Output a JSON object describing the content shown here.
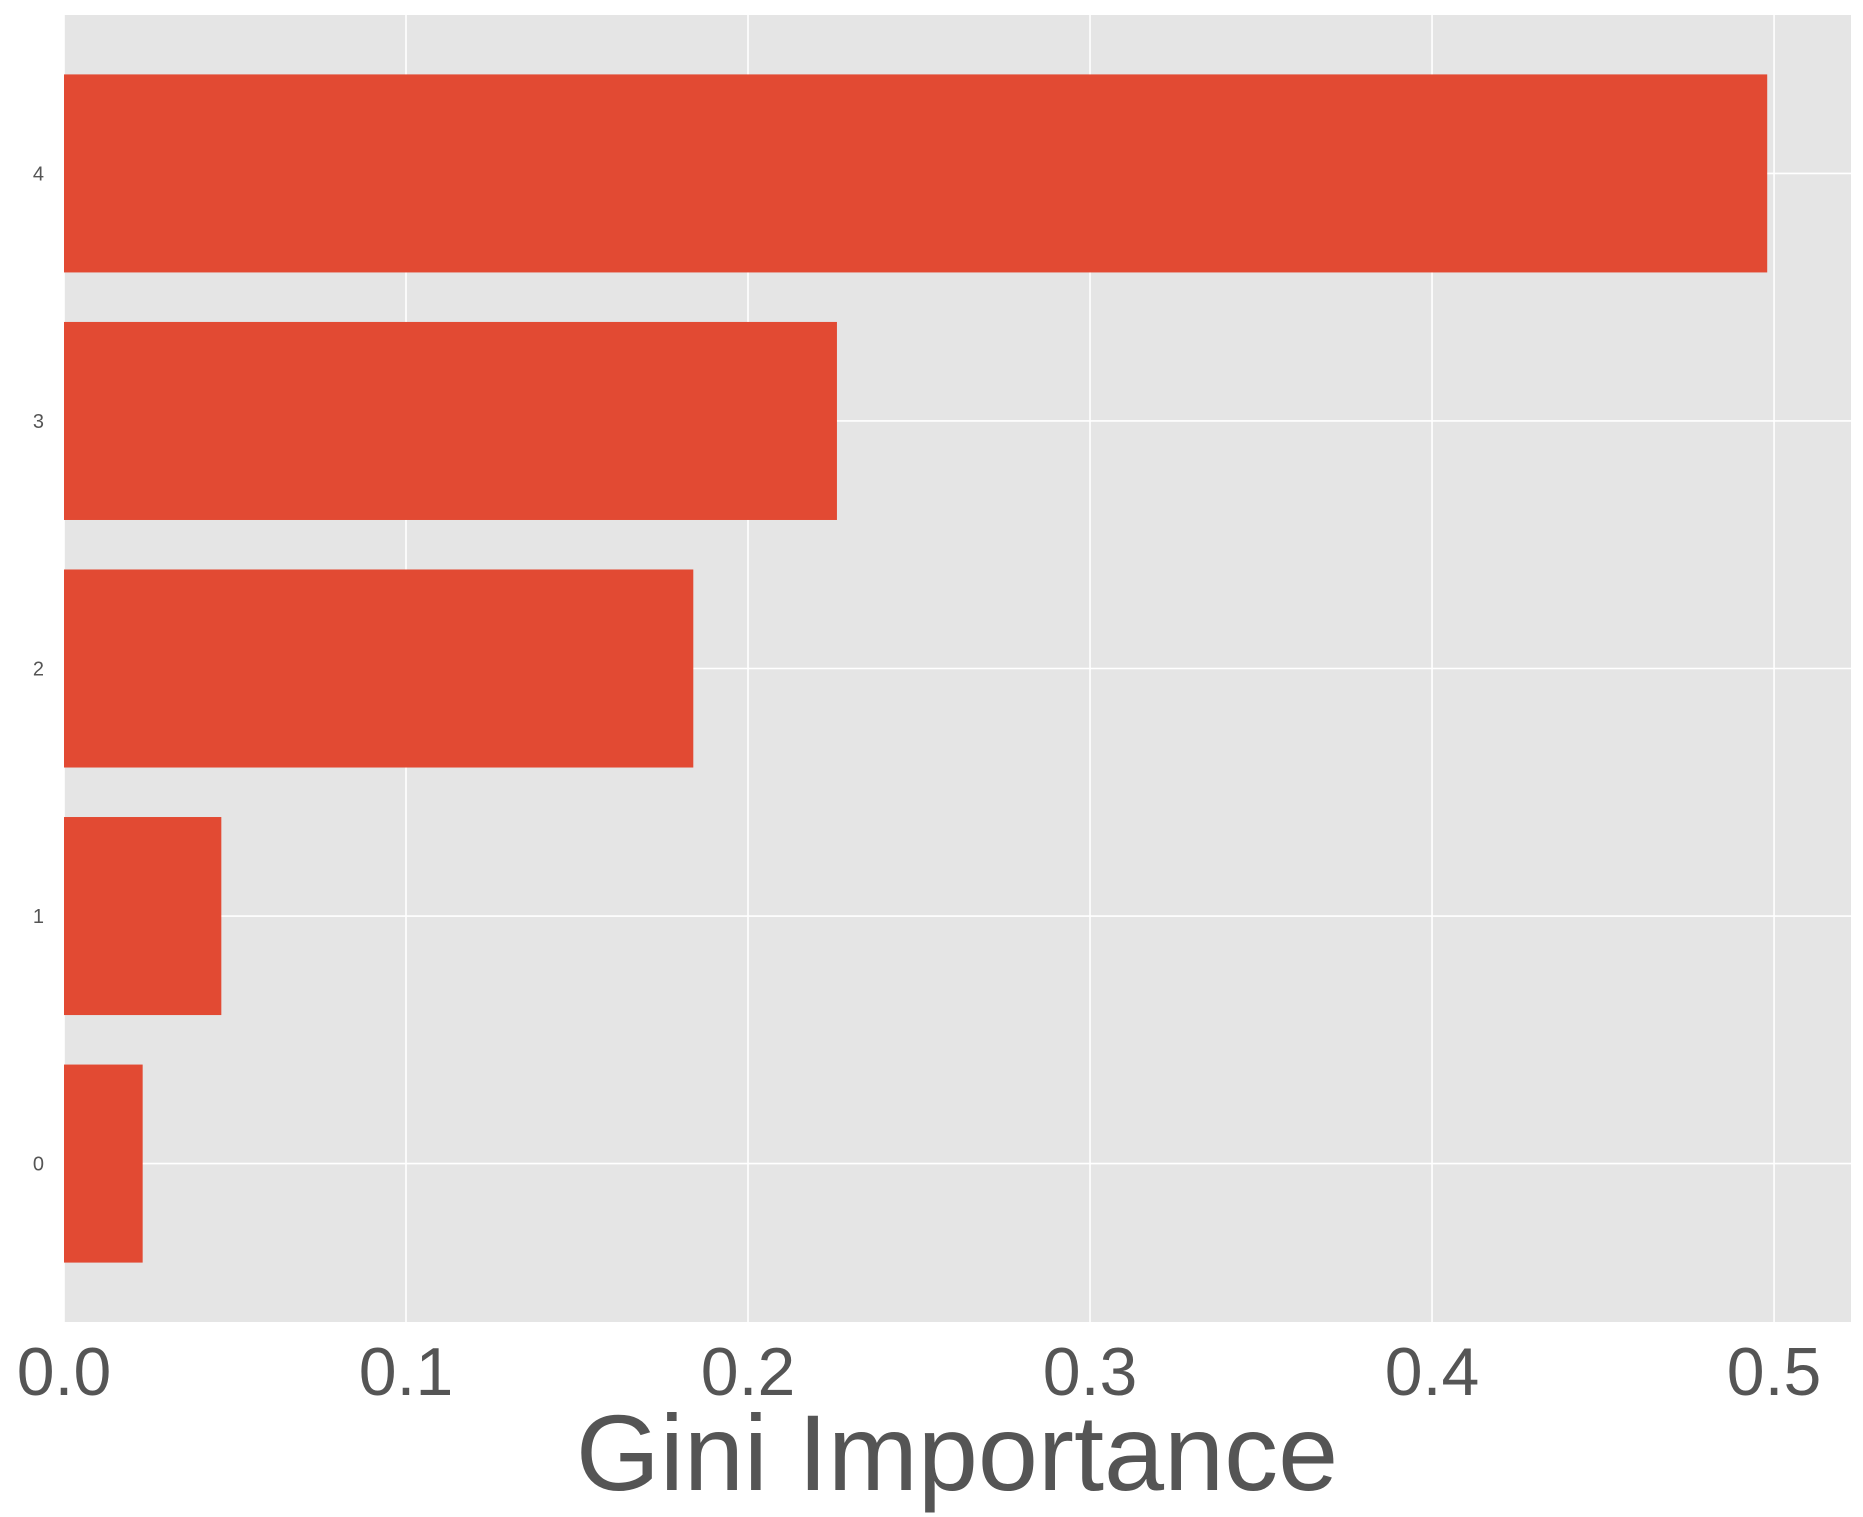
{
  "chart_data": {
    "type": "bar",
    "orientation": "horizontal",
    "categories": [
      "0",
      "1",
      "2",
      "3",
      "4"
    ],
    "values": [
      0.023,
      0.046,
      0.184,
      0.226,
      0.498
    ],
    "title": "",
    "xlabel": "Gini Importance",
    "ylabel": "",
    "xlim": [
      0.0,
      0.5225
    ],
    "x_ticks": [
      "0.0",
      "0.1",
      "0.2",
      "0.3",
      "0.4",
      "0.5"
    ],
    "grid": true,
    "bar_color": "#e24a33",
    "plot_background": "#e5e5e5"
  }
}
